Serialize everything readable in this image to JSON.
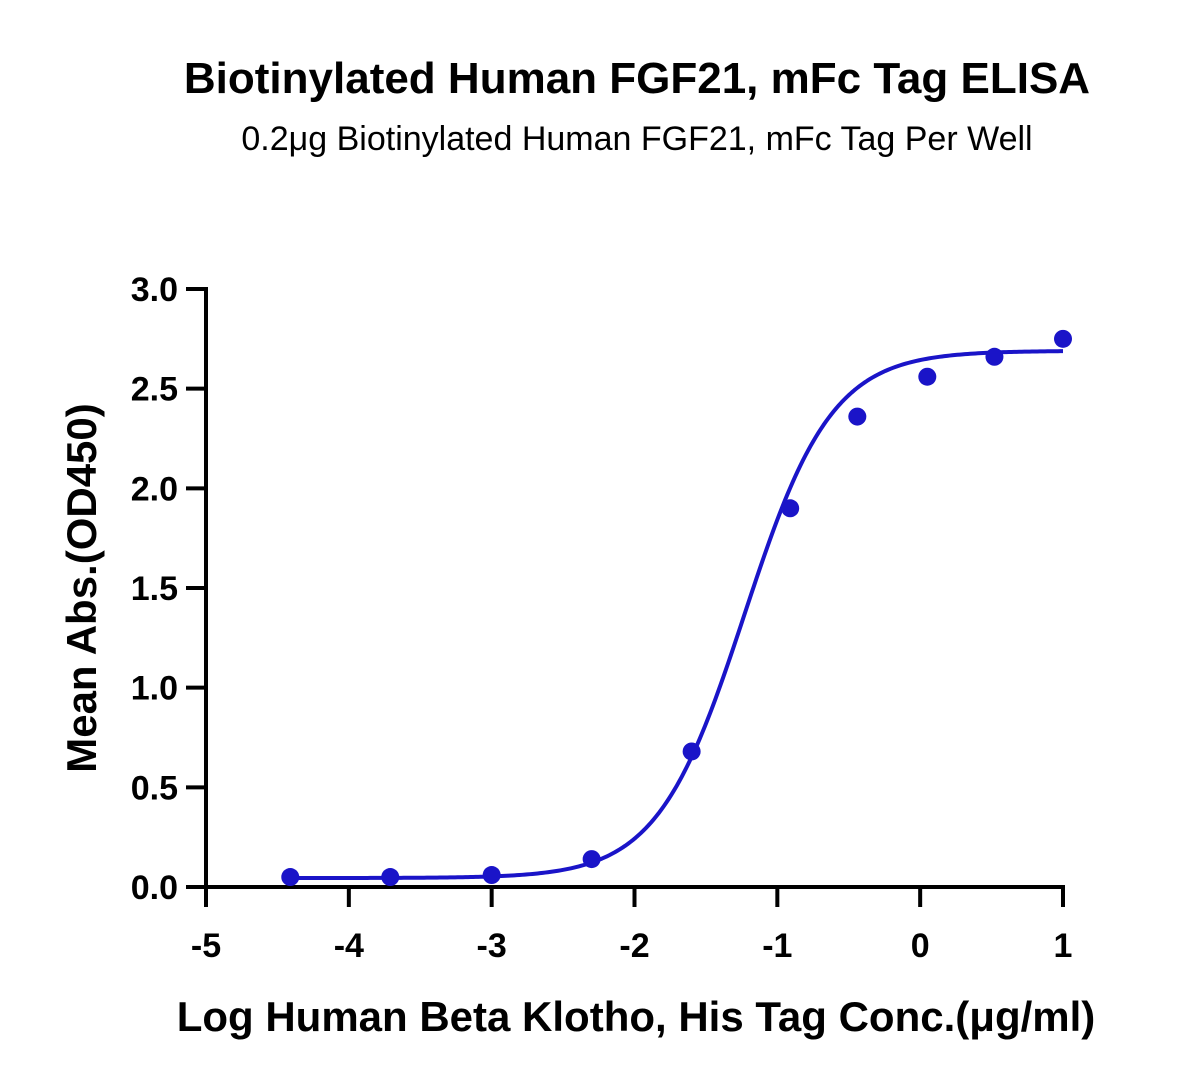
{
  "chart_data": {
    "type": "scatter",
    "title": "Biotinylated Human FGF21, mFc Tag ELISA",
    "subtitle": "0.2μg Biotinylated Human FGF21, mFc Tag Per Well",
    "xlabel": "Log Human Beta Klotho, His Tag Conc.(μg/ml)",
    "ylabel": "Mean Abs.(OD450)",
    "xlim": [
      -5,
      1
    ],
    "ylim": [
      0,
      3.0
    ],
    "x_ticks": [
      -5,
      -4,
      -3,
      -2,
      -1,
      0,
      1
    ],
    "x_tick_labels": [
      "-5",
      "-4",
      "-3",
      "-2",
      "-1",
      "0",
      "1"
    ],
    "y_ticks": [
      0,
      0.5,
      1.0,
      1.5,
      2.0,
      2.5,
      3.0
    ],
    "y_tick_labels": [
      "0.0",
      "0.5",
      "1.0",
      "1.5",
      "2.0",
      "2.5",
      "3.0"
    ],
    "grid": false,
    "color": "#1a14c8",
    "series": [
      {
        "x": [
          -4.41,
          -3.71,
          -3.0,
          -2.3,
          -1.6,
          -0.91,
          -0.44,
          0.05,
          0.52,
          1.0
        ],
        "y": [
          0.05,
          0.05,
          0.06,
          0.14,
          0.68,
          1.9,
          2.36,
          2.56,
          2.66,
          2.75
        ]
      }
    ],
    "fit_curve": {
      "model": "4PL",
      "bottom": 0.045,
      "top": 2.69,
      "log_ec50": -1.23,
      "hill_slope": 1.42,
      "x_range": [
        -4.41,
        1.0
      ]
    }
  }
}
